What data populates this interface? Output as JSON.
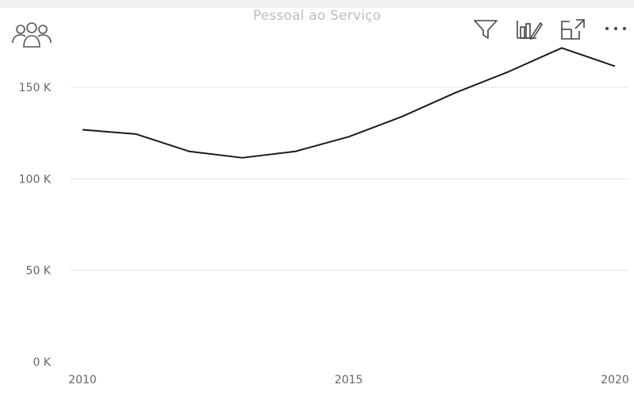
{
  "visual": {
    "title": "Pessoal ao Serviço",
    "icons": {
      "people": "people-group-icon",
      "filter": "filter-icon",
      "analytics": "analytics-icon",
      "focus": "focus-mode-icon",
      "more": "more-options-icon"
    }
  },
  "chart_data": {
    "type": "line",
    "title": "Pessoal ao Serviço",
    "xlabel": "",
    "ylabel": "",
    "x": [
      2010,
      2011,
      2012,
      2013,
      2014,
      2015,
      2016,
      2017,
      2018,
      2019,
      2020
    ],
    "series": [
      {
        "values": [
          126800,
          124500,
          115000,
          111500,
          115000,
          123000,
          134000,
          147000,
          158500,
          171500,
          161500
        ]
      }
    ],
    "ylim": [
      0,
      170000
    ],
    "yticks": [
      0,
      50000,
      100000,
      150000
    ],
    "ytick_labels": [
      "0 K",
      "50 K",
      "100 K",
      "150 K"
    ],
    "xticks": [
      2010,
      2015,
      2020
    ],
    "xtick_labels": [
      "2010",
      "2015",
      "2020"
    ],
    "grid": true,
    "line_color": "#1a1a1a",
    "grid_color": "#e6e6e6"
  }
}
